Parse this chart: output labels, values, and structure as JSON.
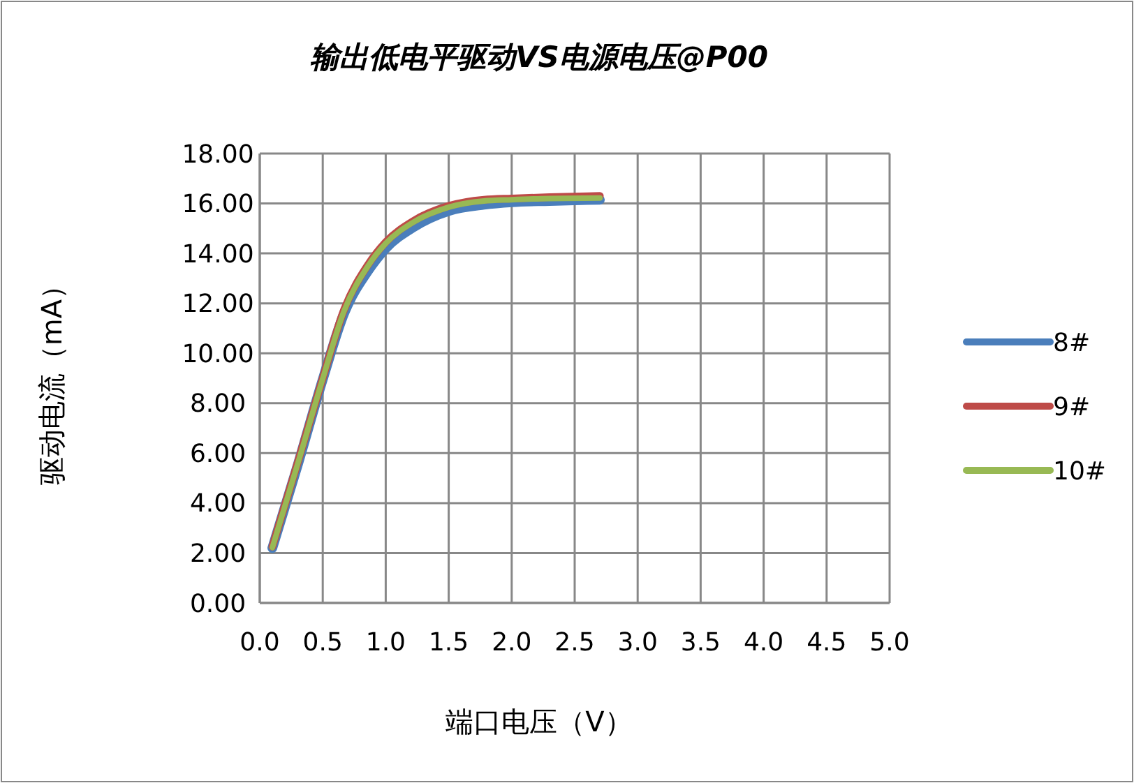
{
  "chart_data": {
    "type": "line",
    "title": "输出低电平驱动VS电源电压@P00",
    "xlabel": "端口电压（V）",
    "ylabel": "驱动电流（mA）",
    "x": [
      0.1,
      0.3,
      0.5,
      0.67,
      0.86,
      1.0,
      1.22,
      1.5,
      1.78,
      2.0,
      2.3,
      2.7
    ],
    "series": [
      {
        "name": "8#",
        "color": "#4a7ebb",
        "values": [
          2.2,
          5.5,
          8.95,
          11.6,
          13.3,
          14.2,
          15.05,
          15.7,
          15.95,
          16.05,
          16.1,
          16.15
        ]
      },
      {
        "name": "9#",
        "color": "#be4b48",
        "values": [
          2.25,
          5.6,
          9.0,
          11.75,
          13.55,
          14.45,
          15.3,
          15.9,
          16.15,
          16.2,
          16.25,
          16.3
        ]
      },
      {
        "name": "10#",
        "color": "#98b954",
        "values": [
          2.22,
          5.55,
          8.98,
          11.7,
          13.5,
          14.4,
          15.25,
          15.85,
          16.1,
          16.15,
          16.2,
          16.22
        ]
      }
    ],
    "xlim": [
      0,
      5
    ],
    "xticks": [
      {
        "value": 0,
        "label": "0.0"
      },
      {
        "value": 0.5,
        "label": "0.5"
      },
      {
        "value": 1,
        "label": "1.0"
      },
      {
        "value": 1.5,
        "label": "1.5"
      },
      {
        "value": 2,
        "label": "2.0"
      },
      {
        "value": 2.5,
        "label": "2.5"
      },
      {
        "value": 3,
        "label": "3.0"
      },
      {
        "value": 3.5,
        "label": "3.5"
      },
      {
        "value": 4,
        "label": "4.0"
      },
      {
        "value": 4.5,
        "label": "4.5"
      },
      {
        "value": 5,
        "label": "5.0"
      }
    ],
    "ylim": [
      0,
      18
    ],
    "yticks": [
      {
        "value": 0,
        "label": "0.00"
      },
      {
        "value": 2,
        "label": "2.00"
      },
      {
        "value": 4,
        "label": "4.00"
      },
      {
        "value": 6,
        "label": "6.00"
      },
      {
        "value": 8,
        "label": "8.00"
      },
      {
        "value": 10,
        "label": "10.00"
      },
      {
        "value": 12,
        "label": "12.00"
      },
      {
        "value": 14,
        "label": "14.00"
      },
      {
        "value": 16,
        "label": "16.00"
      },
      {
        "value": 18,
        "label": "18.00"
      }
    ],
    "grid": true,
    "legend": "right",
    "marker": "none",
    "line_style": "solid"
  }
}
